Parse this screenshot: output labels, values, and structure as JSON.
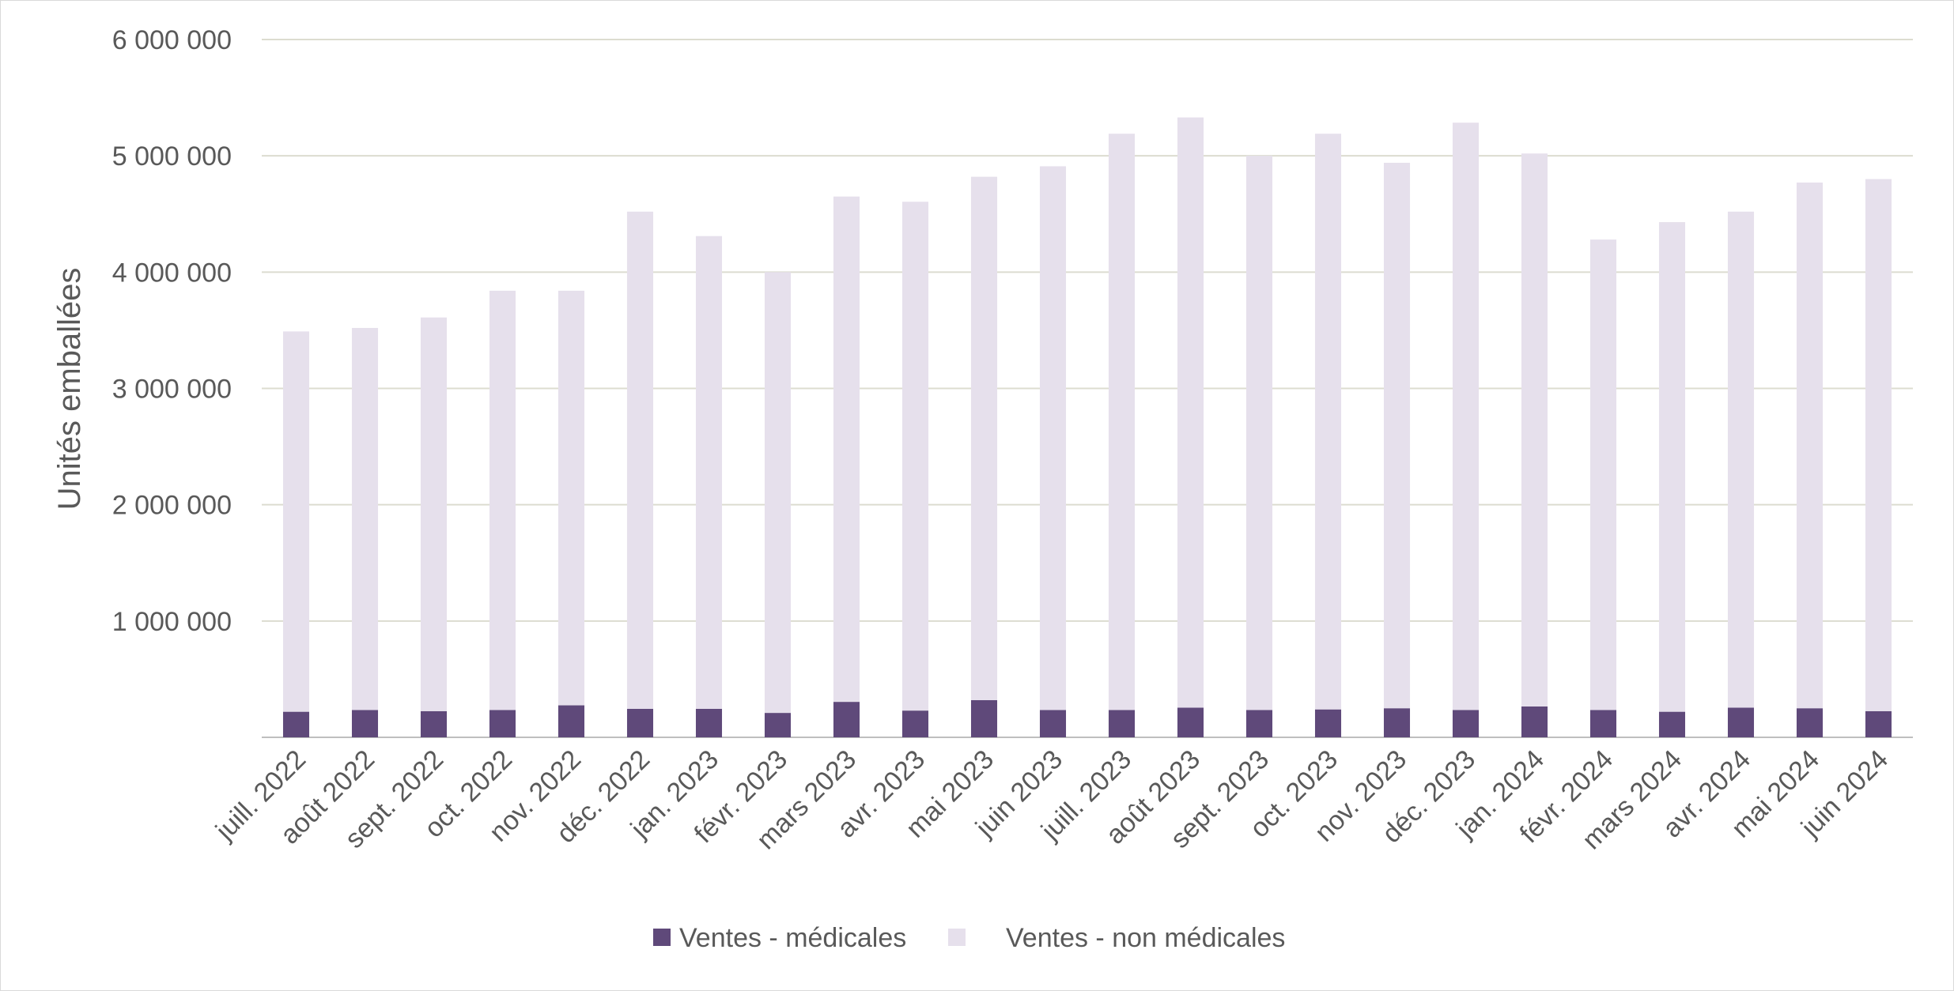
{
  "chart_data": {
    "type": "bar",
    "stacked": true,
    "ylabel": "Unités emballées",
    "ylim": [
      0,
      6000000
    ],
    "yticks": [
      {
        "value": 0,
        "label": ""
      },
      {
        "value": 1000000,
        "label": "1 000 000"
      },
      {
        "value": 2000000,
        "label": "2 000 000"
      },
      {
        "value": 3000000,
        "label": "3 000 000"
      },
      {
        "value": 4000000,
        "label": "4 000 000"
      },
      {
        "value": 5000000,
        "label": "5 000 000"
      },
      {
        "value": 6000000,
        "label": "6 000 000"
      }
    ],
    "grid": true,
    "legend_position": "bottom",
    "categories": [
      "juill. 2022",
      "août 2022",
      "sept. 2022",
      "oct. 2022",
      "nov. 2022",
      "déc. 2022",
      "jan. 2023",
      "févr. 2023",
      "mars 2023",
      "avr. 2023",
      "mai 2023",
      "juin 2023",
      "juill. 2023",
      "août 2023",
      "sept. 2023",
      "oct. 2023",
      "nov. 2023",
      "déc. 2023",
      "jan. 2024",
      "févr. 2024",
      "mars 2024",
      "avr. 2024",
      "mai 2024",
      "juin 2024"
    ],
    "series": [
      {
        "name": "Ventes - médicales",
        "color": "#5f497a",
        "values": [
          220000,
          235000,
          225000,
          235000,
          275000,
          245000,
          245000,
          210000,
          305000,
          230000,
          320000,
          235000,
          235000,
          255000,
          235000,
          240000,
          250000,
          235000,
          265000,
          235000,
          220000,
          255000,
          250000,
          225000
        ]
      },
      {
        "name": "Ventes - non médicales",
        "color": "#e6e0ec",
        "values": [
          3270000,
          3285000,
          3385000,
          3605000,
          3565000,
          4275000,
          4065000,
          3790000,
          4345000,
          4375000,
          4500000,
          4675000,
          4955000,
          5075000,
          4765000,
          4950000,
          4690000,
          5050000,
          4755000,
          4045000,
          4210000,
          4265000,
          4520000,
          4575000
        ]
      }
    ]
  }
}
